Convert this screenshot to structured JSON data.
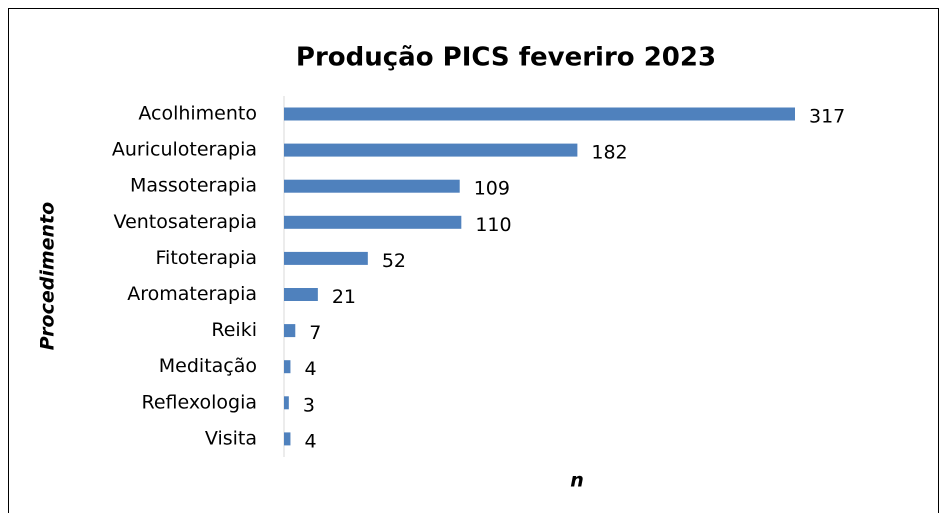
{
  "chart_data": {
    "type": "bar",
    "orientation": "horizontal",
    "title": "Produção PICS feveriro 2023",
    "x_label": "n",
    "y_label": "Procedimento",
    "categories": [
      "Acolhimento",
      "Auriculoterapia",
      "Massoterapia",
      "Ventosaterapia",
      "Fitoterapia",
      "Aromaterapia",
      "Reiki",
      "Meditação",
      "Reflexologia",
      "Visita"
    ],
    "values": [
      317,
      182,
      109,
      110,
      52,
      21,
      7,
      4,
      3,
      4
    ],
    "color": "#4f81bd"
  }
}
